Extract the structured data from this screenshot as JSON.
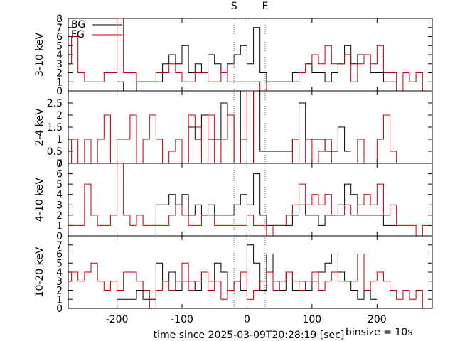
{
  "chart_data": {
    "type": "line",
    "xlabel": "time since 2025-03-09T20:28:19 [sec]",
    "binsize_label": "binsize = 10s",
    "xlim": [
      -275,
      285
    ],
    "xticks": [
      -200,
      -100,
      0,
      100,
      200
    ],
    "xtick_labels": [
      "-200",
      "-100",
      "0",
      "100",
      "200"
    ],
    "markers": [
      {
        "label": "S",
        "x": -20
      },
      {
        "label": "E",
        "x": 28
      }
    ],
    "legend": {
      "placement": "top-left",
      "entries": [
        {
          "name": "BG",
          "color": "#000000"
        },
        {
          "name": "FG",
          "color": "#c00000"
        }
      ]
    },
    "colors": {
      "bg": "#000000",
      "fg": "#c00000",
      "marker": "#666666"
    },
    "panels": [
      {
        "ylabel": "3-10 keV",
        "ylim": [
          0,
          8
        ],
        "yticks": [
          0,
          1,
          2,
          3,
          4,
          5,
          6,
          7,
          8
        ],
        "ytick_labels": [
          "0",
          "1",
          "2",
          "3",
          "4",
          "5",
          "6",
          "7",
          "8"
        ],
        "series": [
          {
            "name": "BG",
            "x": [
              -195,
              -185,
              -175,
              -165,
              -155,
              -145,
              -135,
              -125,
              -115,
              -105,
              -95,
              -85,
              -75,
              -65,
              -55,
              -45,
              -35,
              -25,
              -15,
              -5,
              5,
              15,
              25,
              35,
              45,
              55,
              65,
              75,
              85,
              95,
              105,
              115,
              125,
              135,
              145,
              155,
              165,
              175,
              185,
              195,
              205,
              215,
              225
            ],
            "y": [
              1,
              0,
              0,
              1,
              1,
              1,
              1,
              3,
              4,
              3,
              5,
              2,
              3,
              2,
              4,
              3,
              2,
              3,
              4,
              5,
              3,
              7,
              2,
              1,
              1,
              1,
              1,
              2,
              2,
              3,
              2,
              2,
              1,
              2,
              3,
              5,
              3,
              4,
              4,
              2,
              2,
              1,
              1
            ]
          },
          {
            "name": "FG",
            "x": [
              -275,
              -265,
              -255,
              -245,
              -235,
              -225,
              -215,
              -205,
              -195,
              -185,
              -175,
              -165,
              -155,
              -145,
              -135,
              -125,
              -115,
              -105,
              -95,
              -85,
              -75,
              -65,
              -55,
              -45,
              -35,
              -25,
              -15,
              -5,
              5,
              15,
              25,
              35,
              45,
              55,
              65,
              75,
              85,
              95,
              105,
              115,
              125,
              135,
              145,
              155,
              165,
              175,
              185,
              195,
              205,
              215,
              225,
              235,
              245,
              255,
              265,
              275
            ],
            "y": [
              3,
              6,
              2,
              1,
              1,
              1,
              2,
              2,
              8,
              2,
              2,
              1,
              1,
              1,
              2,
              2,
              3,
              2,
              1,
              1,
              2,
              2,
              1,
              1,
              2,
              1,
              1,
              1,
              1,
              1,
              0,
              1,
              1,
              1,
              1,
              1,
              2,
              3,
              4,
              3,
              5,
              3,
              3,
              4,
              1,
              3,
              4,
              3,
              5,
              2,
              2,
              0,
              2,
              1,
              2,
              0
            ]
          }
        ]
      },
      {
        "ylabel": "2-4 keV",
        "ylim": [
          0,
          3
        ],
        "yticks": [
          0,
          0.5,
          1,
          1.5,
          2,
          2.5
        ],
        "ytick_labels": [
          "0",
          "0.5",
          "1",
          "1.5",
          "2",
          "2.5"
        ],
        "series": [
          {
            "name": "BG",
            "x": [
              -145,
              -135,
              -125,
              -115,
              -105,
              -95,
              -85,
              -75,
              -65,
              -55,
              -45,
              -35,
              -25,
              -15,
              -5,
              5,
              15,
              25,
              35,
              45,
              55,
              65,
              75,
              85,
              95,
              105,
              115,
              125,
              135,
              145,
              155
            ],
            "y": [
              0,
              0,
              0,
              0,
              0,
              0,
              1.5,
              1,
              2,
              1,
              1,
              2.5,
              2,
              0,
              3,
              0,
              3,
              0.5,
              0.5,
              0.5,
              0.5,
              0.5,
              1,
              2.5,
              1,
              1,
              1,
              0.5,
              0.5,
              1.5,
              0.5
            ]
          },
          {
            "name": "FG",
            "x": [
              -275,
              -265,
              -255,
              -245,
              -235,
              -225,
              -215,
              -205,
              -195,
              -185,
              -175,
              -165,
              -155,
              -145,
              -135,
              -125,
              -115,
              -105,
              -95,
              -85,
              -75,
              -65,
              -55,
              -45,
              -35,
              -25,
              -15,
              -5,
              5,
              15,
              25,
              35,
              45,
              55,
              65,
              75,
              85,
              95,
              105,
              115,
              125,
              135,
              145,
              155,
              165,
              175,
              185,
              195,
              205,
              215,
              225,
              235
            ],
            "y": [
              0,
              1,
              0,
              1,
              0,
              1,
              2,
              0,
              1,
              1,
              2,
              0,
              1,
              2,
              1,
              0,
              0.5,
              1,
              0,
              2,
              1.5,
              0,
              2,
              0,
              1,
              2,
              0,
              1,
              3,
              0,
              0,
              0,
              0,
              0,
              0,
              1,
              0,
              1,
              0,
              0.5,
              1,
              0,
              0,
              0,
              0,
              1,
              0,
              0,
              1,
              2,
              0.5,
              0
            ]
          }
        ]
      },
      {
        "ylabel": "4-10 keV",
        "ylim": [
          0,
          7
        ],
        "yticks": [
          0,
          1,
          2,
          3,
          4,
          5,
          6,
          7
        ],
        "ytick_labels": [
          "0",
          "1",
          "2",
          "3",
          "4",
          "5",
          "6",
          "7"
        ],
        "series": [
          {
            "name": "BG",
            "x": [
              -195,
              -185,
              -175,
              -165,
              -155,
              -145,
              -135,
              -125,
              -115,
              -105,
              -95,
              -85,
              -75,
              -65,
              -55,
              -45,
              -35,
              -25,
              -15,
              -5,
              5,
              15,
              25,
              35,
              45,
              55,
              65,
              75,
              85,
              95,
              105,
              115,
              125,
              135,
              145,
              155,
              165,
              175,
              185,
              195,
              205,
              215,
              225
            ],
            "y": [
              0,
              0,
              0,
              0,
              0,
              0,
              3,
              3,
              4,
              3,
              4,
              2,
              3,
              2,
              3,
              2,
              2,
              2,
              3,
              4,
              3,
              6,
              2,
              1,
              1,
              1,
              1,
              2,
              3,
              2,
              2,
              1,
              2,
              2,
              3,
              5,
              4,
              2,
              2,
              2,
              2,
              1,
              1
            ]
          },
          {
            "name": "FG",
            "x": [
              -275,
              -265,
              -255,
              -245,
              -235,
              -225,
              -215,
              -205,
              -195,
              -185,
              -175,
              -165,
              -155,
              -145,
              -135,
              -125,
              -115,
              -105,
              -95,
              -85,
              -75,
              -65,
              -55,
              -45,
              -35,
              -25,
              -15,
              -5,
              5,
              15,
              25,
              35,
              45,
              55,
              65,
              75,
              85,
              95,
              105,
              115,
              125,
              135,
              145,
              155,
              165,
              175,
              185,
              195,
              205,
              215,
              225,
              235,
              245,
              255,
              265,
              275
            ],
            "y": [
              1,
              1,
              1,
              5,
              2,
              1,
              1,
              2,
              7,
              2,
              1,
              2,
              1,
              1,
              1,
              1,
              2,
              3,
              2,
              1,
              1,
              2,
              2,
              1,
              1,
              1,
              1,
              1,
              2,
              1,
              1,
              0,
              1,
              1,
              2,
              3,
              5,
              3,
              4,
              3,
              4,
              2,
              2,
              3,
              2,
              3,
              4,
              3,
              5,
              2,
              3,
              1,
              1,
              1,
              0,
              1
            ]
          }
        ]
      },
      {
        "ylabel": "10-20 keV",
        "ylim": [
          0,
          8
        ],
        "yticks": [
          0,
          1,
          2,
          3,
          4,
          5,
          6,
          7
        ],
        "ytick_labels": [
          "0",
          "1",
          "2",
          "3",
          "4",
          "5",
          "6",
          "7"
        ],
        "series": [
          {
            "name": "BG",
            "x": [
              -215,
              -205,
              -195,
              -185,
              -175,
              -165,
              -155,
              -145,
              -135,
              -125,
              -115,
              -105,
              -95,
              -85,
              -75,
              -65,
              -55,
              -45,
              -35,
              -25,
              -15,
              -5,
              5,
              15,
              25,
              35,
              45,
              55,
              65,
              75,
              85,
              95,
              105,
              115,
              125,
              135,
              145,
              155,
              165,
              175,
              185,
              195
            ],
            "y": [
              0,
              0,
              1,
              1,
              1,
              2,
              1,
              1,
              5,
              3,
              4,
              2,
              3,
              3,
              2,
              4,
              3,
              5,
              4,
              2,
              3,
              2,
              7,
              5,
              2,
              6,
              3,
              2,
              4,
              2,
              3,
              2,
              3,
              4,
              5,
              6,
              4,
              3,
              2,
              1,
              2,
              1
            ]
          },
          {
            "name": "FG",
            "x": [
              -275,
              -265,
              -255,
              -245,
              -235,
              -225,
              -215,
              -205,
              -195,
              -185,
              -175,
              -165,
              -155,
              -145,
              -135,
              -125,
              -115,
              -105,
              -95,
              -85,
              -75,
              -65,
              -55,
              -45,
              -35,
              -25,
              -15,
              -5,
              5,
              15,
              25,
              35,
              45,
              55,
              65,
              75,
              85,
              95,
              105,
              115,
              125,
              135,
              145,
              155,
              165,
              175,
              185,
              195,
              205,
              215,
              225,
              235,
              245,
              255,
              265,
              275
            ],
            "y": [
              3,
              4,
              3,
              4,
              5,
              3,
              2,
              3,
              2,
              4,
              4,
              3,
              2,
              0,
              2,
              3,
              2,
              3,
              5,
              2,
              3,
              4,
              2,
              3,
              1,
              2,
              3,
              4,
              1,
              2,
              3,
              4,
              2,
              3,
              4,
              3,
              2,
              3,
              4,
              2,
              3,
              4,
              3,
              3,
              3,
              6,
              2,
              3,
              4,
              3,
              2,
              1,
              2,
              1,
              2,
              0
            ]
          }
        ]
      }
    ]
  }
}
